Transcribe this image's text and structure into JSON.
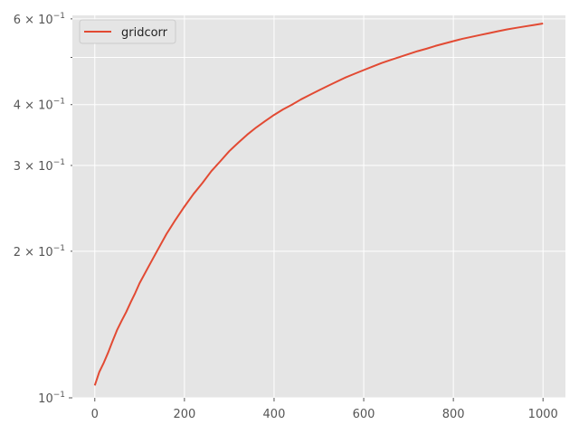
{
  "chart_data": {
    "type": "line",
    "title": "",
    "xlabel": "",
    "ylabel": "",
    "xlim": [
      -50,
      1050
    ],
    "ylim": [
      0.1,
      0.61
    ],
    "yscale": "log",
    "grid": true,
    "legend_placement": "top-left",
    "x_ticks": [
      0,
      200,
      400,
      600,
      800,
      1000
    ],
    "x_tick_labels": [
      "0",
      "200",
      "400",
      "600",
      "800",
      "1000"
    ],
    "y_major_ticks": [
      {
        "value": 0.1,
        "mantissa": "10",
        "exponent": "−1"
      }
    ],
    "y_minor_ticks": [
      {
        "value": 0.2,
        "mantissa": "2 × 10",
        "exponent": "−1"
      },
      {
        "value": 0.3,
        "mantissa": "3 × 10",
        "exponent": "−1"
      },
      {
        "value": 0.4,
        "mantissa": "4 × 10",
        "exponent": "−1"
      },
      {
        "value": 0.5,
        "mantissa": "",
        "exponent": ""
      },
      {
        "value": 0.6,
        "mantissa": "6 × 10",
        "exponent": "−1"
      }
    ],
    "series": [
      {
        "name": "gridcorr",
        "color": "#e24a33",
        "x": [
          0,
          10,
          20,
          30,
          40,
          50,
          60,
          70,
          80,
          90,
          100,
          120,
          140,
          160,
          180,
          200,
          220,
          240,
          260,
          280,
          300,
          320,
          340,
          360,
          380,
          400,
          420,
          440,
          460,
          480,
          500,
          520,
          540,
          560,
          580,
          600,
          620,
          640,
          660,
          680,
          700,
          720,
          740,
          760,
          780,
          800,
          820,
          840,
          860,
          880,
          900,
          920,
          940,
          960,
          980,
          1000
        ],
        "y": [
          0.106,
          0.113,
          0.118,
          0.124,
          0.131,
          0.138,
          0.144,
          0.15,
          0.157,
          0.164,
          0.172,
          0.186,
          0.201,
          0.217,
          0.232,
          0.247,
          0.262,
          0.276,
          0.292,
          0.306,
          0.321,
          0.334,
          0.347,
          0.359,
          0.37,
          0.381,
          0.391,
          0.4,
          0.41,
          0.419,
          0.428,
          0.437,
          0.446,
          0.455,
          0.463,
          0.471,
          0.479,
          0.487,
          0.494,
          0.501,
          0.508,
          0.515,
          0.521,
          0.528,
          0.534,
          0.54,
          0.546,
          0.551,
          0.556,
          0.561,
          0.566,
          0.571,
          0.575,
          0.579,
          0.583,
          0.587
        ]
      }
    ]
  },
  "style": {
    "plot_background": "#e5e5e5",
    "grid_color": "#ffffff",
    "tick_color": "#555555"
  }
}
